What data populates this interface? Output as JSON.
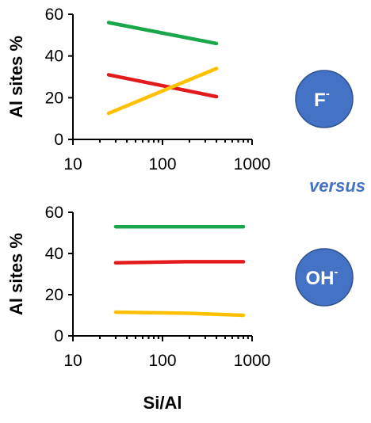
{
  "chart_data": [
    {
      "type": "line",
      "title": "",
      "ylabel": "Al sites %",
      "xlabel": "",
      "xscale": "log",
      "xlim": [
        10,
        1000
      ],
      "ylim": [
        0,
        60
      ],
      "yticks": [
        "0",
        "20",
        "40",
        "60"
      ],
      "xticks": [
        "10",
        "100",
        "1000"
      ],
      "series": [
        {
          "color": "#1aa64a",
          "x": [
            25,
            400
          ],
          "y": [
            56,
            46
          ]
        },
        {
          "color": "#e31a1c",
          "x": [
            25,
            400
          ],
          "y": [
            31,
            20.5
          ]
        },
        {
          "color": "#ffc000",
          "x": [
            25,
            400
          ],
          "y": [
            12.5,
            34
          ]
        }
      ],
      "badge": {
        "text": "F",
        "sup": "-"
      }
    },
    {
      "type": "line",
      "title": "",
      "ylabel": "Al sites %",
      "xlabel": "Si/Al",
      "xscale": "log",
      "xlim": [
        10,
        1000
      ],
      "ylim": [
        0,
        60
      ],
      "yticks": [
        "0",
        "20",
        "40",
        "60"
      ],
      "xticks": [
        "10",
        "100",
        "1000"
      ],
      "series": [
        {
          "color": "#1aa64a",
          "x": [
            30,
            180,
            800
          ],
          "y": [
            53,
            53,
            53
          ]
        },
        {
          "color": "#e31a1c",
          "x": [
            30,
            180,
            800
          ],
          "y": [
            35.5,
            36,
            36
          ]
        },
        {
          "color": "#ffc000",
          "x": [
            30,
            180,
            800
          ],
          "y": [
            11.5,
            11,
            10
          ]
        }
      ],
      "badge": {
        "text": "OH",
        "sup": "-"
      }
    }
  ],
  "versus_label": "versus"
}
